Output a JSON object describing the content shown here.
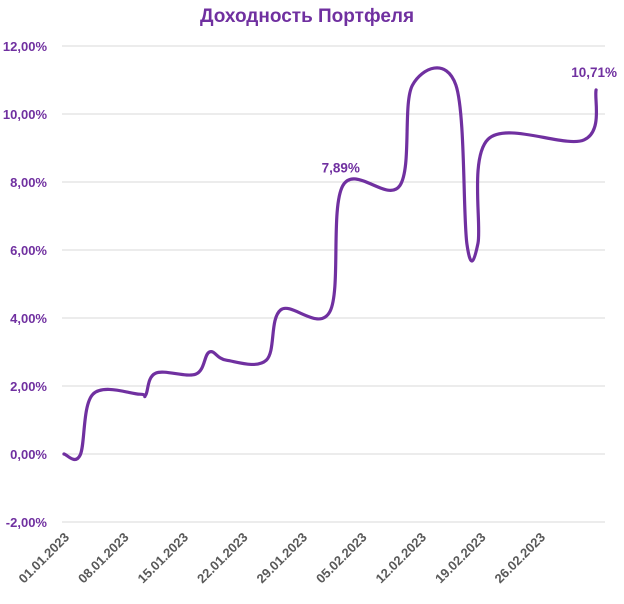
{
  "chart_data": {
    "type": "line",
    "title": "Доходность Портфеля",
    "xlabel": "",
    "ylabel": "",
    "ylim": [
      -2,
      12
    ],
    "y_ticks": [
      "-2,00%",
      "0,00%",
      "2,00%",
      "4,00%",
      "6,00%",
      "8,00%",
      "10,00%",
      "12,00%"
    ],
    "y_tick_values": [
      -2,
      0,
      2,
      4,
      6,
      8,
      10,
      12
    ],
    "x_tick_labels": [
      "01.01.2023",
      "08.01.2023",
      "15.01.2023",
      "22.01.2023",
      "29.01.2023",
      "05.02.2023",
      "12.02.2023",
      "19.02.2023",
      "26.02.2023"
    ],
    "x_range_days": [
      0,
      63.5
    ],
    "grid": true,
    "legend": "none",
    "series": [
      {
        "name": "Доходность Портфеля",
        "color": "#7030a0",
        "day": [
          0,
          1.9,
          3.4,
          8.9,
          9.6,
          10.8,
          15.5,
          17.1,
          19.1,
          23.8,
          25.5,
          31.3,
          32.8,
          39.5,
          41.0,
          46.1,
          47.4,
          48.7,
          49.9,
          61.2,
          62.6
        ],
        "values": [
          0.0,
          -0.03,
          1.76,
          1.76,
          1.73,
          2.38,
          2.35,
          3.0,
          2.76,
          2.76,
          4.24,
          4.2,
          7.89,
          7.89,
          10.85,
          10.85,
          6.18,
          6.2,
          9.26,
          9.24,
          10.71
        ]
      }
    ],
    "annotations": [
      {
        "text": "7,89%",
        "day": 32.8,
        "value": 7.89
      },
      {
        "text": "10,71%",
        "day": 62.6,
        "value": 10.71
      }
    ]
  }
}
